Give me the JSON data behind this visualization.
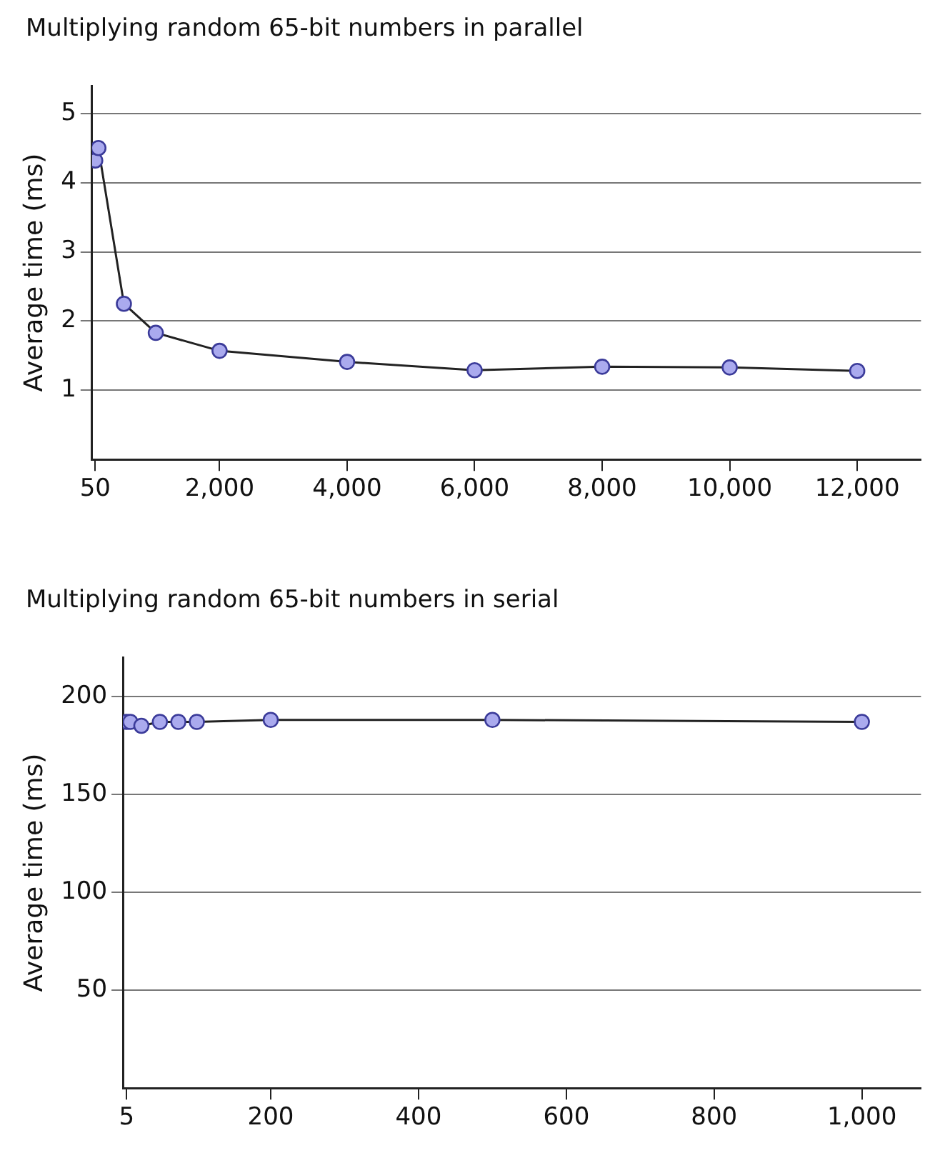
{
  "chart_data": [
    {
      "type": "line",
      "title": "Multiplying random 65-bit numbers in parallel",
      "ylabel": "Average time (ms)",
      "x": [
        50,
        100,
        500,
        1000,
        2000,
        4000,
        6000,
        8000,
        10000,
        12000
      ],
      "series": [
        {
          "color": "#aaaaee",
          "values": [
            4.32,
            4.5,
            2.25,
            1.83,
            1.57,
            1.41,
            1.29,
            1.34,
            1.33,
            1.28
          ]
        }
      ],
      "xlim": [
        0,
        13000
      ],
      "xticks": [
        50,
        {
          "value": 2000,
          "label": "2,000"
        },
        {
          "value": 4000,
          "label": "4,000"
        },
        {
          "value": 6000,
          "label": "6,000"
        },
        {
          "value": 8000,
          "label": "8,000"
        },
        {
          "value": 10000,
          "label": "10,000"
        },
        {
          "value": 12000,
          "label": "12,000"
        }
      ],
      "ylim": [
        0,
        5.4
      ],
      "yticks": [
        1,
        2,
        3,
        4,
        5
      ],
      "grid": "y",
      "marker": "circle",
      "line_style": "solid"
    },
    {
      "type": "line",
      "title": "Multiplying random 65-bit numbers in serial",
      "ylabel": "Average time (ms)",
      "x": [
        5,
        10,
        25,
        50,
        75,
        100,
        200,
        500,
        1000
      ],
      "series": [
        {
          "color": "#aaaaee",
          "values": [
            187,
            187,
            185,
            187,
            187,
            187,
            188,
            188,
            187
          ]
        }
      ],
      "xlim": [
        0,
        1080
      ],
      "xticks": [
        5,
        200,
        400,
        600,
        800,
        {
          "value": 1000,
          "label": "1,000"
        }
      ],
      "ylim": [
        0,
        220
      ],
      "yticks": [
        50,
        100,
        150,
        200
      ],
      "grid": "y",
      "marker": "circle",
      "line_style": "solid"
    }
  ]
}
